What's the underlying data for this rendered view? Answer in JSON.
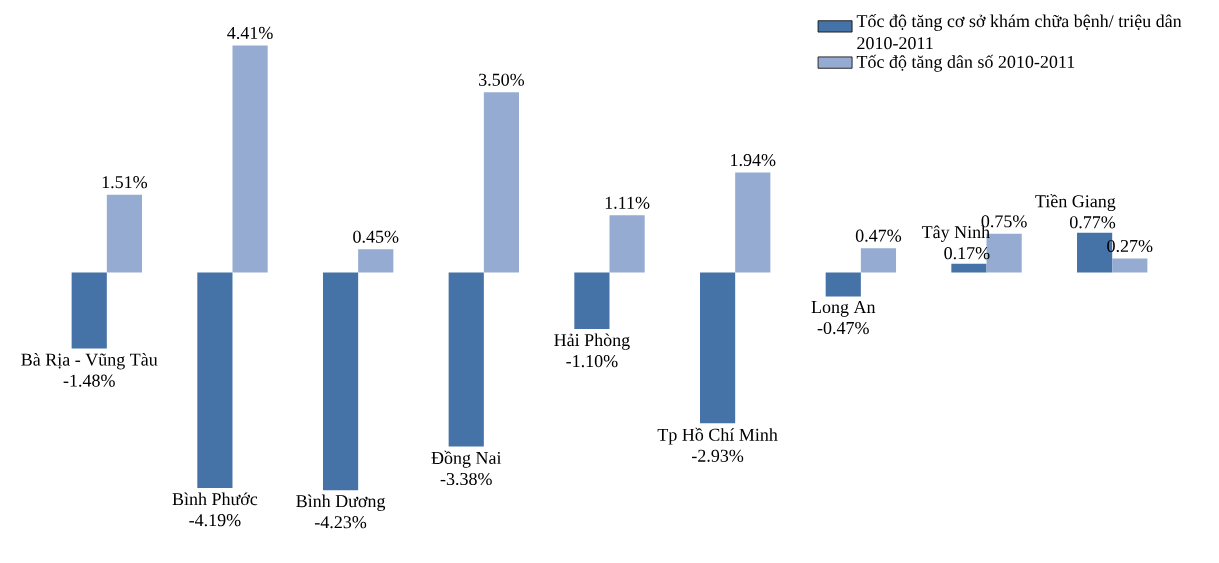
{
  "chart_data": {
    "type": "bar",
    "categories": [
      "Bà Rịa - Vũng Tàu",
      "Bình Phước",
      "Bình Dương",
      "Đồng Nai",
      "Hải Phòng",
      "Tp Hồ Chí Minh",
      "Long An",
      "Tây Ninh",
      "Tiền Giang"
    ],
    "series": [
      {
        "name": "Tốc độ tăng cơ sở khám chữa bệnh/ triệu dân 2010-2011",
        "color": "#4573a7",
        "values": [
          -1.48,
          -4.19,
          -4.23,
          -3.38,
          -1.1,
          -2.93,
          -0.47,
          0.17,
          0.77
        ],
        "value_labels": [
          "-1.48%",
          "-4.19%",
          "-4.23%",
          "-3.38%",
          "-1.10%",
          "-2.93%",
          "-0.47%",
          "0.17%",
          "0.77%"
        ]
      },
      {
        "name": "Tốc độ tăng dân số 2010-2011",
        "color": "#95abd2",
        "values": [
          1.51,
          4.41,
          0.45,
          3.5,
          1.11,
          1.94,
          0.47,
          0.75,
          0.27
        ],
        "value_labels": [
          "1.51%",
          "4.41%",
          "0.45%",
          "3.50%",
          "1.11%",
          "1.94%",
          "0.47%",
          "0.75%",
          "0.27%"
        ]
      }
    ],
    "legend": "top right"
  }
}
